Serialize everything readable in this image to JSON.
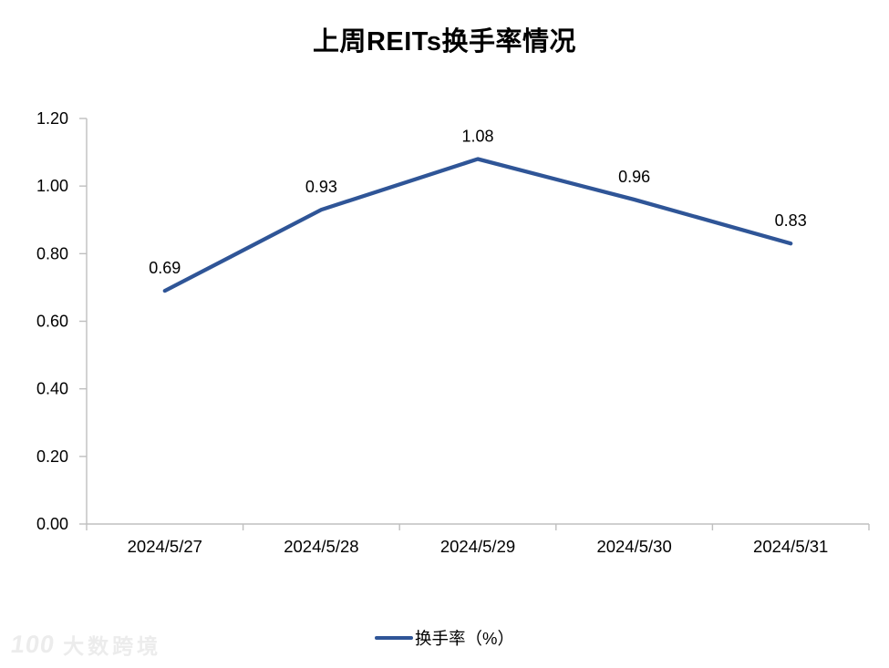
{
  "title": "上周REITs换手率情况",
  "legend": {
    "label": "换手率（%）"
  },
  "watermark": {
    "logo": "100",
    "text": "大数跨境"
  },
  "chart_data": {
    "type": "line",
    "title": "上周REITs换手率情况",
    "categories": [
      "2024/5/27",
      "2024/5/28",
      "2024/5/29",
      "2024/5/30",
      "2024/5/31"
    ],
    "series": [
      {
        "name": "换手率（%）",
        "values": [
          0.69,
          0.93,
          1.08,
          0.96,
          0.83
        ]
      }
    ],
    "data_labels": [
      "0.69",
      "0.93",
      "1.08",
      "0.96",
      "0.83"
    ],
    "xlabel": "",
    "ylabel": "",
    "ylim": [
      0,
      1.2
    ],
    "ytick_step": 0.2,
    "ytick_labels": [
      "0.00",
      "0.20",
      "0.40",
      "0.60",
      "0.80",
      "1.00",
      "1.20"
    ],
    "grid": false,
    "legend_position": "bottom",
    "colors": {
      "line": "#2F5597",
      "axis": "#BFBFBF",
      "text": "#000000",
      "watermark": "#ECECEC"
    }
  }
}
